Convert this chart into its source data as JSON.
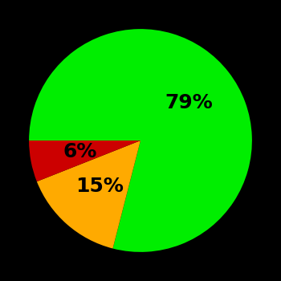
{
  "slices": [
    79,
    15,
    6
  ],
  "colors": [
    "#00ee00",
    "#ffaa00",
    "#cc0000"
  ],
  "labels": [
    "79%",
    "15%",
    "6%"
  ],
  "background_color": "#000000",
  "text_color": "#000000",
  "font_size": 18,
  "font_weight": "bold",
  "startangle": 180,
  "counterclock": false,
  "figsize": [
    3.5,
    3.5
  ],
  "dpi": 100,
  "label_r": 0.55
}
